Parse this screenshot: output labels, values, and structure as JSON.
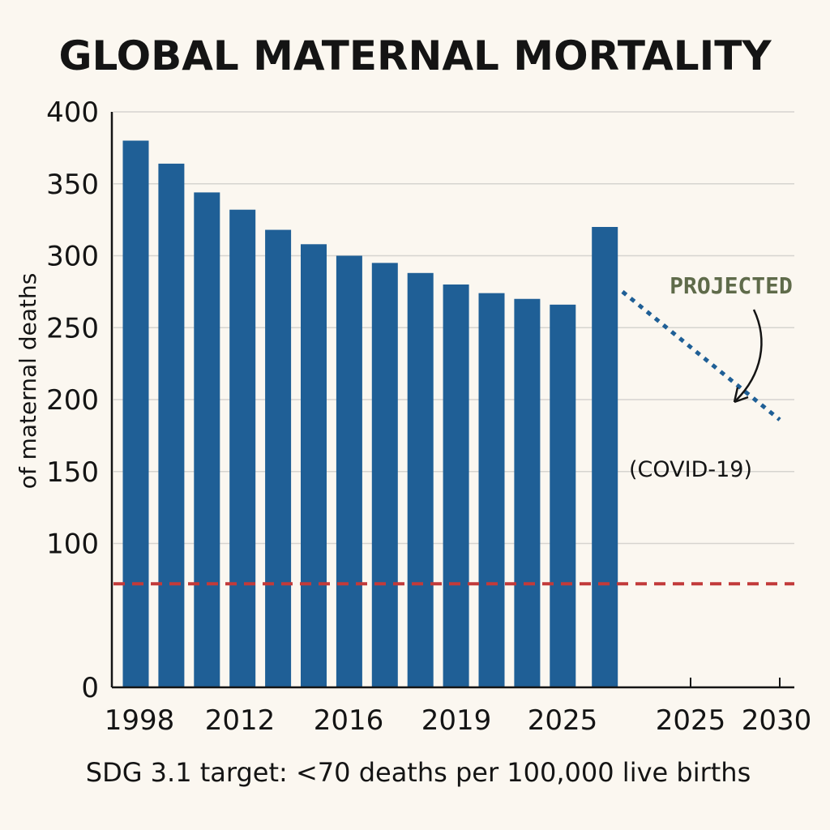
{
  "chart_data": {
    "type": "bar",
    "title": "GLOBAL MATERNAL MORTALITY",
    "ylabel": "of maternal deaths",
    "xlabel": "",
    "ylim": [
      0,
      400
    ],
    "yticks": [
      0,
      100,
      150,
      200,
      250,
      300,
      350,
      400
    ],
    "grid": true,
    "series": [
      {
        "values": [
          380,
          364,
          344,
          332,
          318,
          308,
          300,
          295,
          288,
          280,
          274,
          270,
          266,
          320
        ]
      }
    ],
    "x_tick_labels": [
      "1998",
      "2012",
      "2016",
      "2019",
      "2025",
      "2025",
      "2030"
    ],
    "projection": {
      "label": "PROJECTED",
      "annotation": "(COVID-19)",
      "start_value": 275,
      "end_value": 186
    },
    "target_line": {
      "value": 72
    },
    "footnote": "SDG 3.1 target: <70 deaths per 100,000 live births",
    "colors": {
      "bar": "#1f5f96",
      "target": "#c23a3a",
      "projection": "#1f5f96",
      "projected_label": "#5f6b4a",
      "grid": "#d6d4cf",
      "axis": "#141414"
    }
  }
}
